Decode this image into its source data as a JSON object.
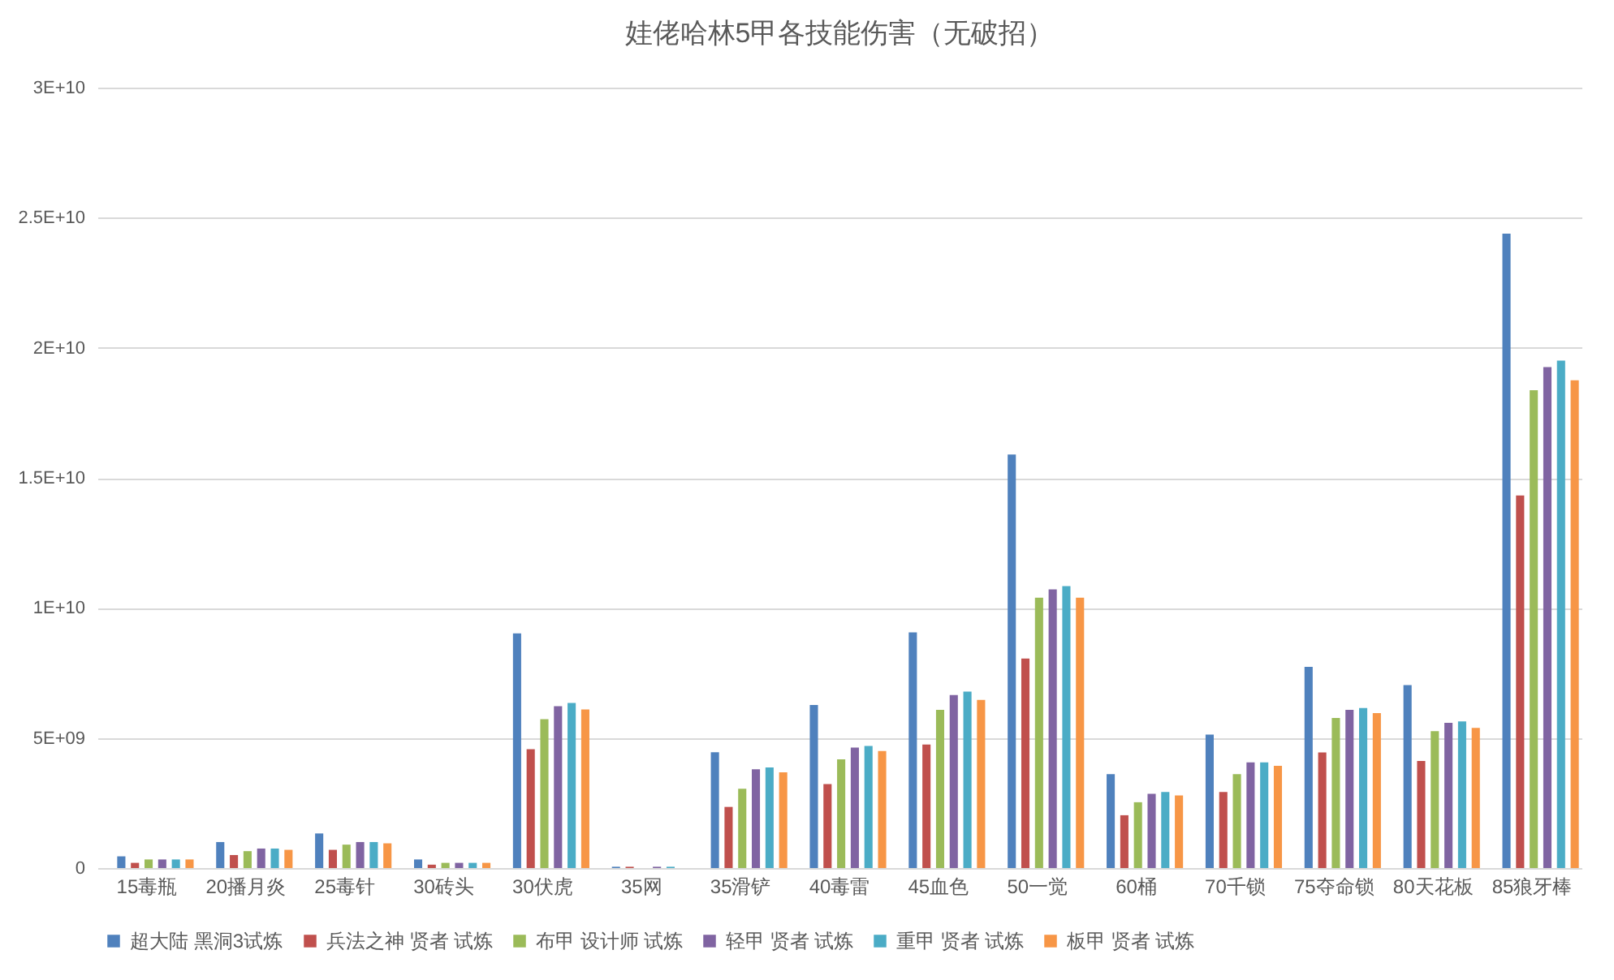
{
  "chart_data": {
    "type": "bar",
    "title": "娃佬哈林5甲各技能伤害（无破招）",
    "categories": [
      "15毒瓶",
      "20播月炎",
      "25毒针",
      "30砖头",
      "30伏虎",
      "35网",
      "35滑铲",
      "40毒雷",
      "45血色",
      "50一觉",
      "60桶",
      "70千锁",
      "75夺命锁",
      "80天花板",
      "85狼牙棒"
    ],
    "series": [
      {
        "name": "超大陆 黑洞3试炼",
        "color": "#4f81bd",
        "values": [
          450000000.0,
          1000000000.0,
          1330000000.0,
          330000000.0,
          9020000000.0,
          50000000.0,
          4450000000.0,
          6270000000.0,
          9060000000.0,
          15900000000.0,
          3610000000.0,
          5130000000.0,
          7730000000.0,
          7030000000.0,
          24390000000.0
        ]
      },
      {
        "name": "兵法之神 贤者 试炼",
        "color": "#c0504d",
        "values": [
          200000000.0,
          500000000.0,
          700000000.0,
          130000000.0,
          4570000000.0,
          50000000.0,
          2350000000.0,
          3230000000.0,
          4750000000.0,
          8050000000.0,
          2030000000.0,
          2920000000.0,
          4440000000.0,
          4120000000.0,
          14320000000.0
        ]
      },
      {
        "name": "布甲 设计师 试炼",
        "color": "#9bbb59",
        "values": [
          330000000.0,
          650000000.0,
          900000000.0,
          200000000.0,
          5720000000.0,
          0,
          3050000000.0,
          4180000000.0,
          6080000000.0,
          10390000000.0,
          2530000000.0,
          3610000000.0,
          5770000000.0,
          5260000000.0,
          18370000000.0
        ]
      },
      {
        "name": "轻甲 贤者 试炼",
        "color": "#8064a2",
        "values": [
          330000000.0,
          750000000.0,
          1000000000.0,
          200000000.0,
          6220000000.0,
          50000000.0,
          3800000000.0,
          4630000000.0,
          6650000000.0,
          10710000000.0,
          2850000000.0,
          4060000000.0,
          6080000000.0,
          5580000000.0,
          19260000000.0
        ]
      },
      {
        "name": "重甲 贤者 试炼",
        "color": "#4bacc6",
        "values": [
          330000000.0,
          750000000.0,
          1000000000.0,
          200000000.0,
          6350000000.0,
          50000000.0,
          3870000000.0,
          4690000000.0,
          6780000000.0,
          10840000000.0,
          2920000000.0,
          4060000000.0,
          6150000000.0,
          5640000000.0,
          19510000000.0
        ]
      },
      {
        "name": "板甲 贤者 试炼",
        "color": "#f79646",
        "values": [
          330000000.0,
          700000000.0,
          950000000.0,
          200000000.0,
          6100000000.0,
          0,
          3680000000.0,
          4500000000.0,
          6460000000.0,
          10390000000.0,
          2790000000.0,
          3930000000.0,
          5960000000.0,
          5390000000.0,
          18750000000.0
        ]
      }
    ],
    "ylim": [
      0,
      30000000000.0
    ],
    "yticks": [
      {
        "value": 0,
        "label": "0"
      },
      {
        "value": 5000000000.0,
        "label": "5E+09"
      },
      {
        "value": 10000000000.0,
        "label": "1E+10"
      },
      {
        "value": 15000000000.0,
        "label": "1.5E+10"
      },
      {
        "value": 20000000000.0,
        "label": "2E+10"
      },
      {
        "value": 25000000000.0,
        "label": "2.5E+10"
      },
      {
        "value": 30000000000.0,
        "label": "3E+10"
      }
    ],
    "grid": "y",
    "legend": "bottom"
  }
}
